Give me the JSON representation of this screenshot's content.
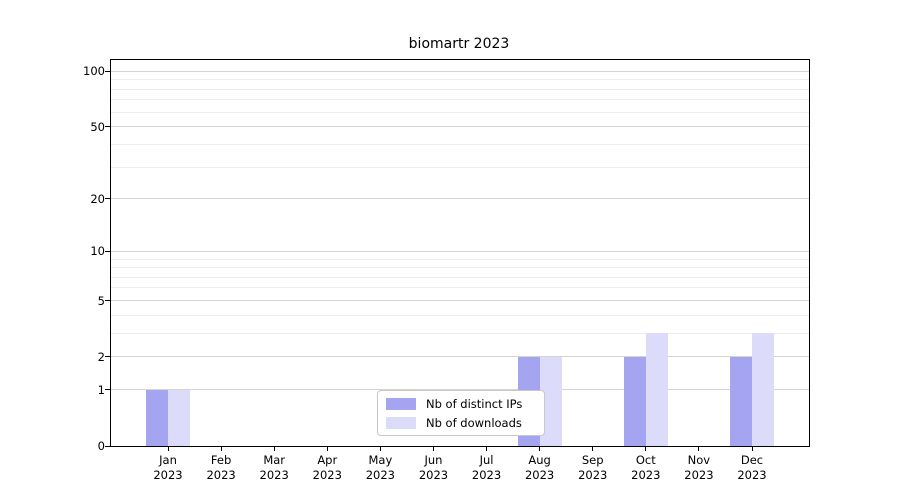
{
  "title": "biomartr 2023",
  "colors": {
    "ips": "#a4a4f0",
    "downloads": "#dcdcfa",
    "grid_major": "#d4d4d4",
    "grid_minor": "#ececec",
    "axis": "#000000",
    "legend_border": "#c8c8c8"
  },
  "legend": {
    "items": [
      {
        "label": "Nb of distinct IPs",
        "color_key": "ips"
      },
      {
        "label": "Nb of downloads",
        "color_key": "downloads"
      }
    ]
  },
  "chart_data": {
    "type": "bar",
    "title": "biomartr 2023",
    "xlabel": "",
    "ylabel": "",
    "y_scale": "log10(1+x)",
    "categories": [
      "Jan",
      "Feb",
      "Mar",
      "Apr",
      "May",
      "Jun",
      "Jul",
      "Aug",
      "Sep",
      "Oct",
      "Nov",
      "Dec"
    ],
    "category_year": "2023",
    "series": [
      {
        "name": "Nb of distinct IPs",
        "color_key": "ips",
        "values": [
          1,
          0,
          0,
          0,
          0,
          0,
          0,
          2,
          0,
          2,
          0,
          2
        ]
      },
      {
        "name": "Nb of downloads",
        "color_key": "downloads",
        "values": [
          1,
          0,
          0,
          0,
          0,
          0,
          0,
          2,
          0,
          3,
          0,
          3
        ]
      }
    ],
    "y_major_ticks": [
      0,
      1,
      2,
      5,
      10,
      20,
      50,
      100
    ],
    "y_minor_gridlines": [
      3,
      4,
      6,
      7,
      8,
      9,
      30,
      40,
      60,
      70,
      80,
      90
    ],
    "ylim": [
      0,
      115
    ],
    "grid": true,
    "legend_position": "inside-bottom-center"
  }
}
